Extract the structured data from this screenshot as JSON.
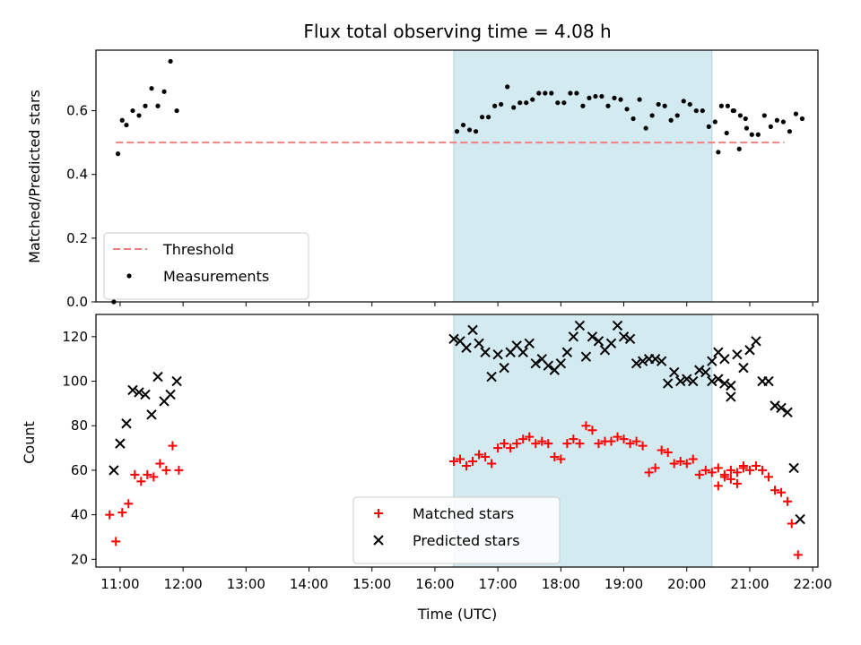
{
  "chart_data": [
    {
      "type": "scatter",
      "title": "Flux total observing time = 4.08 h",
      "xlabel": "",
      "ylabel": "Matched/Predicted stars",
      "ylim": [
        0,
        0.79
      ],
      "yticks": [
        0.0,
        0.2,
        0.4,
        0.6
      ],
      "x_time_range": [
        "10:37",
        "22:05"
      ],
      "shaded_span": {
        "start": "16:18",
        "end": "20:24",
        "color": "#d3eaf1"
      },
      "legend_position": "lower-left",
      "series": [
        {
          "name": "Threshold",
          "style": "dashed-line",
          "color": "#f47f7f",
          "points": [
            [
              "10:56",
              0.5
            ],
            [
              "21:33",
              0.5
            ]
          ]
        },
        {
          "name": "Measurements",
          "style": "dot",
          "color": "#000000",
          "points": [
            [
              "10:54",
              0.0
            ],
            [
              "10:58",
              0.465
            ],
            [
              "11:02",
              0.57
            ],
            [
              "11:06",
              0.555
            ],
            [
              "11:12",
              0.6
            ],
            [
              "11:18",
              0.585
            ],
            [
              "11:24",
              0.615
            ],
            [
              "11:30",
              0.67
            ],
            [
              "11:36",
              0.615
            ],
            [
              "11:42",
              0.66
            ],
            [
              "11:48",
              0.755
            ],
            [
              "11:54",
              0.6
            ],
            [
              "16:21",
              0.535
            ],
            [
              "16:27",
              0.555
            ],
            [
              "16:33",
              0.54
            ],
            [
              "16:39",
              0.535
            ],
            [
              "16:45",
              0.58
            ],
            [
              "16:51",
              0.58
            ],
            [
              "16:57",
              0.615
            ],
            [
              "17:03",
              0.62
            ],
            [
              "17:09",
              0.675
            ],
            [
              "17:15",
              0.61
            ],
            [
              "17:21",
              0.625
            ],
            [
              "17:27",
              0.625
            ],
            [
              "17:33",
              0.635
            ],
            [
              "17:39",
              0.655
            ],
            [
              "17:45",
              0.655
            ],
            [
              "17:51",
              0.655
            ],
            [
              "17:57",
              0.625
            ],
            [
              "18:03",
              0.625
            ],
            [
              "18:09",
              0.655
            ],
            [
              "18:15",
              0.655
            ],
            [
              "18:21",
              0.615
            ],
            [
              "18:27",
              0.64
            ],
            [
              "18:33",
              0.645
            ],
            [
              "18:39",
              0.645
            ],
            [
              "18:45",
              0.615
            ],
            [
              "18:51",
              0.64
            ],
            [
              "18:57",
              0.635
            ],
            [
              "19:03",
              0.605
            ],
            [
              "19:09",
              0.575
            ],
            [
              "19:15",
              0.635
            ],
            [
              "19:21",
              0.545
            ],
            [
              "19:27",
              0.585
            ],
            [
              "19:33",
              0.62
            ],
            [
              "19:39",
              0.615
            ],
            [
              "19:45",
              0.57
            ],
            [
              "19:51",
              0.585
            ],
            [
              "19:57",
              0.63
            ],
            [
              "20:03",
              0.62
            ],
            [
              "20:09",
              0.6
            ],
            [
              "20:15",
              0.6
            ],
            [
              "20:21",
              0.55
            ],
            [
              "20:27",
              0.565
            ],
            [
              "20:33",
              0.615
            ],
            [
              "20:39",
              0.615
            ],
            [
              "20:45",
              0.6
            ],
            [
              "20:51",
              0.585
            ],
            [
              "20:57",
              0.545
            ],
            [
              "20:30",
              0.47
            ],
            [
              "20:38",
              0.53
            ],
            [
              "20:44",
              0.6
            ],
            [
              "20:50",
              0.48
            ],
            [
              "20:56",
              0.575
            ],
            [
              "21:02",
              0.525
            ],
            [
              "21:08",
              0.525
            ],
            [
              "21:14",
              0.585
            ],
            [
              "21:20",
              0.55
            ],
            [
              "21:26",
              0.57
            ],
            [
              "21:32",
              0.565
            ],
            [
              "21:38",
              0.535
            ],
            [
              "21:44",
              0.59
            ],
            [
              "21:50",
              0.575
            ]
          ]
        }
      ]
    },
    {
      "type": "scatter",
      "title": "",
      "xlabel": "Time (UTC)",
      "ylabel": "Count",
      "ylim": [
        16.5,
        130
      ],
      "yticks": [
        20,
        40,
        60,
        80,
        100,
        120
      ],
      "x_time_range": [
        "10:37",
        "22:05"
      ],
      "xticks": [
        "11:00",
        "12:00",
        "13:00",
        "14:00",
        "15:00",
        "16:00",
        "17:00",
        "18:00",
        "19:00",
        "20:00",
        "21:00",
        "22:00"
      ],
      "shaded_span": {
        "start": "16:18",
        "end": "20:24",
        "color": "#d3eaf1"
      },
      "legend_position": "lower-center",
      "series": [
        {
          "name": "Matched stars",
          "style": "plus",
          "color": "#ff0000",
          "points": [
            [
              "10:50",
              40
            ],
            [
              "10:56",
              28
            ],
            [
              "11:02",
              41
            ],
            [
              "11:08",
              45
            ],
            [
              "11:14",
              58
            ],
            [
              "11:20",
              55
            ],
            [
              "11:26",
              58
            ],
            [
              "11:32",
              57
            ],
            [
              "11:38",
              63
            ],
            [
              "11:44",
              60
            ],
            [
              "11:50",
              71
            ],
            [
              "11:56",
              60
            ],
            [
              "16:18",
              64
            ],
            [
              "16:24",
              65
            ],
            [
              "16:30",
              62
            ],
            [
              "16:36",
              64
            ],
            [
              "16:42",
              67
            ],
            [
              "16:48",
              66
            ],
            [
              "16:54",
              63
            ],
            [
              "17:00",
              70
            ],
            [
              "17:06",
              72
            ],
            [
              "17:12",
              70
            ],
            [
              "17:18",
              72
            ],
            [
              "17:24",
              74
            ],
            [
              "17:30",
              75
            ],
            [
              "17:36",
              72
            ],
            [
              "17:42",
              73
            ],
            [
              "17:48",
              72
            ],
            [
              "17:54",
              66
            ],
            [
              "18:00",
              65
            ],
            [
              "18:06",
              72
            ],
            [
              "18:12",
              74
            ],
            [
              "18:18",
              72
            ],
            [
              "18:24",
              80
            ],
            [
              "18:30",
              78
            ],
            [
              "18:36",
              72
            ],
            [
              "18:42",
              73
            ],
            [
              "18:48",
              73
            ],
            [
              "18:54",
              75
            ],
            [
              "19:00",
              74
            ],
            [
              "19:06",
              72
            ],
            [
              "19:12",
              73
            ],
            [
              "19:18",
              71
            ],
            [
              "19:24",
              59
            ],
            [
              "19:30",
              61
            ],
            [
              "19:36",
              69
            ],
            [
              "19:42",
              68
            ],
            [
              "19:48",
              63
            ],
            [
              "19:54",
              64
            ],
            [
              "20:00",
              63
            ],
            [
              "20:06",
              65
            ],
            [
              "20:12",
              58
            ],
            [
              "20:18",
              60
            ],
            [
              "20:24",
              59
            ],
            [
              "20:30",
              61
            ],
            [
              "20:36",
              58
            ],
            [
              "20:42",
              60
            ],
            [
              "20:48",
              59
            ],
            [
              "20:54",
              62
            ],
            [
              "20:30",
              53
            ],
            [
              "20:36",
              57
            ],
            [
              "20:42",
              56
            ],
            [
              "20:48",
              54
            ],
            [
              "20:54",
              61
            ],
            [
              "21:00",
              60
            ],
            [
              "21:06",
              62
            ],
            [
              "21:12",
              60
            ],
            [
              "21:18",
              57
            ],
            [
              "21:24",
              51
            ],
            [
              "21:30",
              50
            ],
            [
              "21:36",
              46
            ],
            [
              "21:40",
              36
            ],
            [
              "21:46",
              22
            ]
          ]
        },
        {
          "name": "Predicted stars",
          "style": "cross",
          "color": "#000000",
          "points": [
            [
              "10:54",
              60
            ],
            [
              "11:00",
              72
            ],
            [
              "11:06",
              81
            ],
            [
              "11:12",
              96
            ],
            [
              "11:18",
              95
            ],
            [
              "11:24",
              94
            ],
            [
              "11:30",
              85
            ],
            [
              "11:36",
              102
            ],
            [
              "11:42",
              91
            ],
            [
              "11:48",
              94
            ],
            [
              "11:54",
              100
            ],
            [
              "16:18",
              119
            ],
            [
              "16:24",
              118
            ],
            [
              "16:30",
              115
            ],
            [
              "16:36",
              123
            ],
            [
              "16:42",
              117
            ],
            [
              "16:48",
              113
            ],
            [
              "16:54",
              102
            ],
            [
              "17:00",
              112
            ],
            [
              "17:06",
              106
            ],
            [
              "17:12",
              113
            ],
            [
              "17:18",
              116
            ],
            [
              "17:24",
              113
            ],
            [
              "17:30",
              117
            ],
            [
              "17:36",
              108
            ],
            [
              "17:42",
              110
            ],
            [
              "17:48",
              107
            ],
            [
              "17:54",
              105
            ],
            [
              "18:00",
              108
            ],
            [
              "18:06",
              113
            ],
            [
              "18:12",
              120
            ],
            [
              "18:18",
              125
            ],
            [
              "18:24",
              111
            ],
            [
              "18:30",
              120
            ],
            [
              "18:36",
              118
            ],
            [
              "18:42",
              114
            ],
            [
              "18:48",
              117
            ],
            [
              "18:54",
              125
            ],
            [
              "19:00",
              120
            ],
            [
              "19:06",
              119
            ],
            [
              "19:12",
              108
            ],
            [
              "19:18",
              109
            ],
            [
              "19:24",
              110
            ],
            [
              "19:30",
              110
            ],
            [
              "19:36",
              109
            ],
            [
              "19:42",
              99
            ],
            [
              "19:48",
              104
            ],
            [
              "19:54",
              100
            ],
            [
              "20:00",
              101
            ],
            [
              "20:06",
              100
            ],
            [
              "20:12",
              105
            ],
            [
              "20:18",
              104
            ],
            [
              "20:24",
              100
            ],
            [
              "20:30",
              101
            ],
            [
              "20:36",
              99
            ],
            [
              "20:42",
              98
            ],
            [
              "20:24",
              109
            ],
            [
              "20:30",
              113
            ],
            [
              "20:36",
              110
            ],
            [
              "20:42",
              93
            ],
            [
              "20:48",
              112
            ],
            [
              "20:54",
              106
            ],
            [
              "21:00",
              114
            ],
            [
              "21:06",
              118
            ],
            [
              "21:12",
              100
            ],
            [
              "21:18",
              100
            ],
            [
              "21:24",
              89
            ],
            [
              "21:30",
              88
            ],
            [
              "21:36",
              86
            ],
            [
              "21:42",
              61
            ],
            [
              "21:48",
              38
            ]
          ]
        }
      ]
    }
  ]
}
